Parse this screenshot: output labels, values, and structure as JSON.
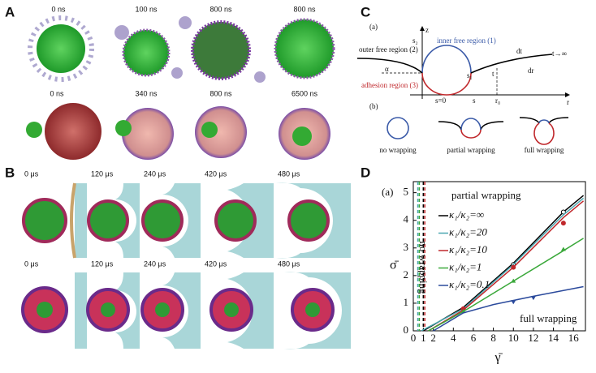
{
  "panels": {
    "A": {
      "label": "A",
      "top_times": [
        "0 ns",
        "100 ns",
        "800 ns",
        "800 ns"
      ],
      "bottom_times": [
        "0 ns",
        "340 ns",
        "800 ns",
        "6500 ns"
      ]
    },
    "B": {
      "label": "B",
      "top_times": [
        "0 μs",
        "120 μs",
        "240 μs",
        "420 μs",
        "480 μs"
      ],
      "bottom_times": [
        "0 μs",
        "120 μs",
        "240 μs",
        "420 μs",
        "480 μs"
      ]
    },
    "C": {
      "label": "C",
      "sub_a": "(a)",
      "z": "z",
      "s2": "s₂",
      "inner": "inner free region (1)",
      "outer": "outer free region (2)",
      "alpha": "α",
      "adhesion": "adhesion region (3)",
      "s1": "s₁",
      "dt": "dt",
      "t_inf": "t→∞",
      "dr": "dr",
      "t": "t",
      "s0": "s=0",
      "s": "s",
      "r0": "r₀",
      "r": "r",
      "sub_b": "(b)",
      "no_wrap": "no wrapping",
      "partial": "partial wrapping",
      "full": "full wrapping"
    },
    "D": {
      "label": "D"
    }
  },
  "chart_data": {
    "type": "line",
    "panel_tag": "(a)",
    "x_label": "γ̄",
    "y_label": "σ̄",
    "annotations": [
      "partial wrapping",
      "no wrapping",
      "full wrapping"
    ],
    "xlim": [
      0,
      17.2
    ],
    "ylim": [
      0,
      5.4
    ],
    "xticks": [
      0,
      1,
      2,
      4,
      6,
      8,
      10,
      12,
      14,
      16
    ],
    "yticks": [
      0,
      1,
      2,
      3,
      4,
      5
    ],
    "thresholds": [
      {
        "x": 0.45,
        "color": "#4aa6b0"
      },
      {
        "x": 0.6,
        "color": "#3aa83a"
      },
      {
        "x": 1,
        "color": "#000000"
      },
      {
        "x": 1.15,
        "color": "#c0282c"
      }
    ],
    "series": [
      {
        "name": "κ₁/κ₂=∞",
        "color": "#000000",
        "marker": "circle-open",
        "x": [
          1,
          5,
          10,
          15,
          17
        ],
        "values": [
          0,
          0.85,
          2.45,
          4.3,
          4.9
        ],
        "marker_x": [
          10,
          15
        ],
        "marker_values": [
          2.4,
          4.3
        ]
      },
      {
        "name": "κ₁/κ₂=20",
        "color": "#4aa6b0",
        "marker": "none",
        "x": [
          0.8,
          5,
          10,
          15,
          17
        ],
        "values": [
          0,
          0.8,
          2.4,
          4.2,
          4.8
        ],
        "marker_x": [],
        "marker_values": []
      },
      {
        "name": "κ₁/κ₂=10",
        "color": "#c0282c",
        "marker": "circle",
        "x": [
          1.5,
          5,
          10,
          15,
          17
        ],
        "values": [
          0,
          0.75,
          2.3,
          4.1,
          4.7
        ],
        "marker_x": [
          5,
          10,
          15
        ],
        "marker_values": [
          0.8,
          2.3,
          3.9
        ]
      },
      {
        "name": "κ₁/κ₂=1",
        "color": "#3aa83a",
        "marker": "triangle",
        "x": [
          1.5,
          5,
          10,
          15,
          17
        ],
        "values": [
          0,
          0.7,
          1.8,
          2.9,
          3.35
        ],
        "marker_x": [
          5,
          10,
          15
        ],
        "marker_values": [
          0.7,
          1.8,
          2.95
        ]
      },
      {
        "name": "κ₁/κ₂=0.1",
        "color": "#2b4a9c",
        "marker": "triangle-down",
        "x": [
          2,
          5,
          8,
          10,
          12,
          17
        ],
        "values": [
          0,
          0.65,
          0.95,
          1.1,
          1.25,
          1.6
        ],
        "marker_x": [
          10,
          12
        ],
        "marker_values": [
          1.05,
          1.2
        ]
      }
    ]
  }
}
